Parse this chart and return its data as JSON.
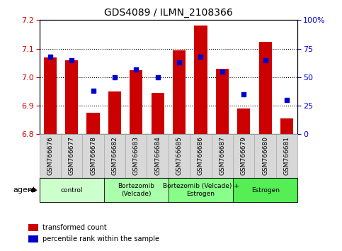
{
  "title": "GDS4089 / ILMN_2108366",
  "samples": [
    "GSM766676",
    "GSM766677",
    "GSM766678",
    "GSM766682",
    "GSM766683",
    "GSM766684",
    "GSM766685",
    "GSM766686",
    "GSM766687",
    "GSM766679",
    "GSM766680",
    "GSM766681"
  ],
  "bar_values": [
    7.07,
    7.06,
    6.875,
    6.95,
    7.025,
    6.945,
    7.095,
    7.18,
    7.03,
    6.89,
    7.125,
    6.855
  ],
  "dot_values": [
    68,
    65,
    38,
    50,
    57,
    50,
    63,
    68,
    55,
    35,
    65,
    30
  ],
  "ylim_left": [
    6.8,
    7.2
  ],
  "ylim_right": [
    0,
    100
  ],
  "yticks_left": [
    6.8,
    6.9,
    7.0,
    7.1,
    7.2
  ],
  "yticks_right": [
    0,
    25,
    50,
    75,
    100
  ],
  "bar_color": "#cc0000",
  "dot_color": "#0000cc",
  "bar_base": 6.8,
  "groups": [
    {
      "label": "control",
      "start": 0,
      "end": 3,
      "color": "#ccffcc"
    },
    {
      "label": "Bortezomib\n(Velcade)",
      "start": 3,
      "end": 6,
      "color": "#aaffaa"
    },
    {
      "label": "Bortezomib (Velcade) +\nEstrogen",
      "start": 6,
      "end": 9,
      "color": "#88ff88"
    },
    {
      "label": "Estrogen",
      "start": 9,
      "end": 12,
      "color": "#55ee55"
    }
  ],
  "legend_items": [
    {
      "label": "transformed count",
      "color": "#cc0000"
    },
    {
      "label": "percentile rank within the sample",
      "color": "#0000cc"
    }
  ],
  "title_fontsize": 10,
  "gridline_values": [
    6.9,
    7.0,
    7.1
  ]
}
